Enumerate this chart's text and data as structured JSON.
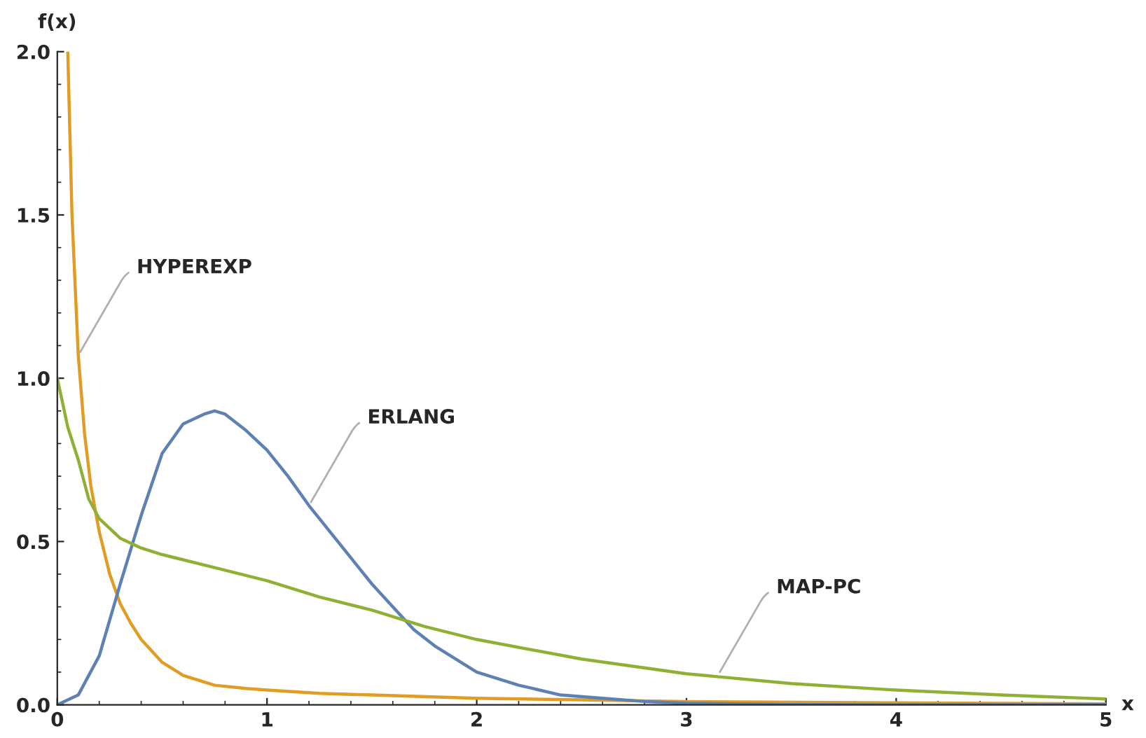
{
  "chart_data": {
    "type": "line",
    "xlabel": "x",
    "ylabel": "f(x)",
    "xlim": [
      0,
      5
    ],
    "ylim": [
      0,
      2
    ],
    "xticks": [
      0,
      1,
      2,
      3,
      4,
      5
    ],
    "yticks": [
      {
        "value": 0,
        "label": "0.0"
      },
      {
        "value": 0.5,
        "label": "0.5"
      },
      {
        "value": 1,
        "label": "1.0"
      },
      {
        "value": 1.5,
        "label": "1.5"
      },
      {
        "value": 2,
        "label": "2.0"
      }
    ],
    "grid": false,
    "legend": false,
    "line_style": "solid",
    "marker": "none",
    "series": [
      {
        "color": "#e19c24",
        "x": [
          0.05,
          0.07,
          0.1,
          0.13,
          0.16,
          0.2,
          0.25,
          0.3,
          0.35,
          0.4,
          0.5,
          0.6,
          0.75,
          0.9,
          1.0,
          1.25,
          1.5,
          2.0,
          2.5,
          3.0,
          4.0,
          5.0
        ],
        "values": [
          2.0,
          1.5,
          1.07,
          0.83,
          0.67,
          0.53,
          0.4,
          0.31,
          0.25,
          0.2,
          0.13,
          0.09,
          0.06,
          0.05,
          0.045,
          0.035,
          0.03,
          0.02,
          0.015,
          0.01,
          0.006,
          0.003
        ]
      },
      {
        "color": "#5e81b5",
        "x": [
          0,
          0.1,
          0.2,
          0.3,
          0.4,
          0.5,
          0.6,
          0.7,
          0.75,
          0.8,
          0.9,
          1.0,
          1.1,
          1.2,
          1.3,
          1.4,
          1.5,
          1.6,
          1.7,
          1.8,
          2.0,
          2.2,
          2.4,
          2.6,
          2.8,
          3.0,
          3.5,
          4.0,
          5.0
        ],
        "values": [
          0,
          0.03,
          0.15,
          0.37,
          0.58,
          0.77,
          0.86,
          0.89,
          0.9,
          0.89,
          0.84,
          0.78,
          0.7,
          0.61,
          0.53,
          0.45,
          0.37,
          0.3,
          0.23,
          0.18,
          0.1,
          0.06,
          0.03,
          0.02,
          0.01,
          0.005,
          0.001,
          0.0,
          0.0
        ]
      },
      {
        "color": "#8fb032",
        "x": [
          0,
          0.05,
          0.1,
          0.15,
          0.2,
          0.3,
          0.4,
          0.5,
          0.75,
          1.0,
          1.25,
          1.5,
          1.75,
          2.0,
          2.5,
          3.0,
          3.5,
          4.0,
          4.5,
          5.0
        ],
        "values": [
          1.0,
          0.85,
          0.75,
          0.63,
          0.57,
          0.51,
          0.48,
          0.46,
          0.42,
          0.38,
          0.33,
          0.29,
          0.24,
          0.2,
          0.14,
          0.095,
          0.065,
          0.045,
          0.03,
          0.018
        ]
      }
    ],
    "annotations": [
      {
        "text": "HYPEREXP",
        "x": 0.1,
        "y": 1.07
      },
      {
        "text": "ERLANG",
        "x": 1.2,
        "y": 0.61
      },
      {
        "text": "MAP-PC",
        "x": 3.15,
        "y": 0.09
      }
    ]
  }
}
